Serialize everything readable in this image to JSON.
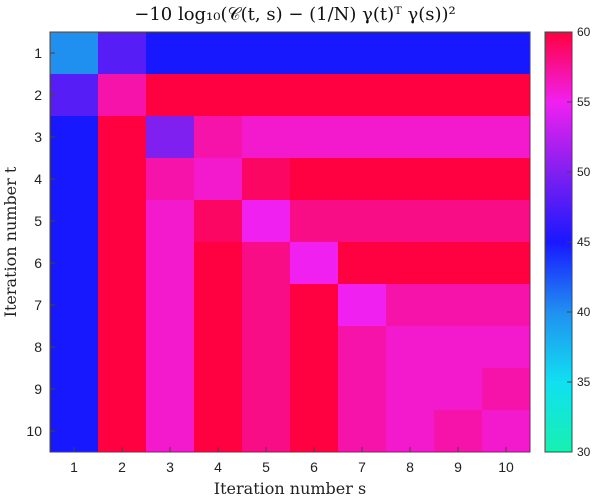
{
  "chart_data": {
    "type": "heatmap",
    "title": "−10 log₁₀(𝒞(t, s) − (1/N) γ(t)ᵀ γ(s))²",
    "xlabel": "Iteration number s",
    "ylabel": "Iteration number t",
    "x": [
      1,
      2,
      3,
      4,
      5,
      6,
      7,
      8,
      9,
      10
    ],
    "y": [
      1,
      2,
      3,
      4,
      5,
      6,
      7,
      8,
      9,
      10
    ],
    "x_tick_labels": [
      "1",
      "2",
      "3",
      "4",
      "5",
      "6",
      "7",
      "8",
      "9",
      "10"
    ],
    "y_tick_labels": [
      "1",
      "2",
      "3",
      "4",
      "5",
      "6",
      "7",
      "8",
      "9",
      "10"
    ],
    "colorbar": {
      "min": 30,
      "max": 60,
      "ticks": [
        30,
        35,
        40,
        45,
        50,
        55,
        60
      ],
      "tick_labels": [
        "30",
        "35",
        "40",
        "45",
        "50",
        "55",
        "60"
      ],
      "colormap": [
        "#18f0b0",
        "#10e0f0",
        "#2090f0",
        "#1818ff",
        "#8020f0",
        "#f020f0",
        "#ff0040"
      ]
    },
    "values": [
      [
        40,
        48,
        45,
        45,
        45,
        45,
        45,
        45,
        45,
        45
      ],
      [
        48,
        57,
        60,
        60,
        60,
        60,
        60,
        60,
        60,
        60
      ],
      [
        45,
        60,
        50,
        57,
        56,
        56,
        56,
        56,
        56,
        56
      ],
      [
        45,
        60,
        57,
        56,
        59,
        60,
        60,
        60,
        60,
        60
      ],
      [
        45,
        60,
        56,
        59,
        55,
        58,
        58,
        58,
        58,
        58
      ],
      [
        45,
        60,
        56,
        60,
        58,
        55,
        60,
        60,
        60,
        60
      ],
      [
        45,
        60,
        56,
        60,
        58,
        60,
        55,
        57,
        57,
        57
      ],
      [
        45,
        60,
        56,
        60,
        58,
        60,
        57,
        56,
        56,
        56
      ],
      [
        45,
        60,
        56,
        60,
        58,
        60,
        57,
        56,
        56,
        57
      ],
      [
        45,
        60,
        56,
        60,
        58,
        60,
        57,
        56,
        57,
        56
      ]
    ]
  }
}
